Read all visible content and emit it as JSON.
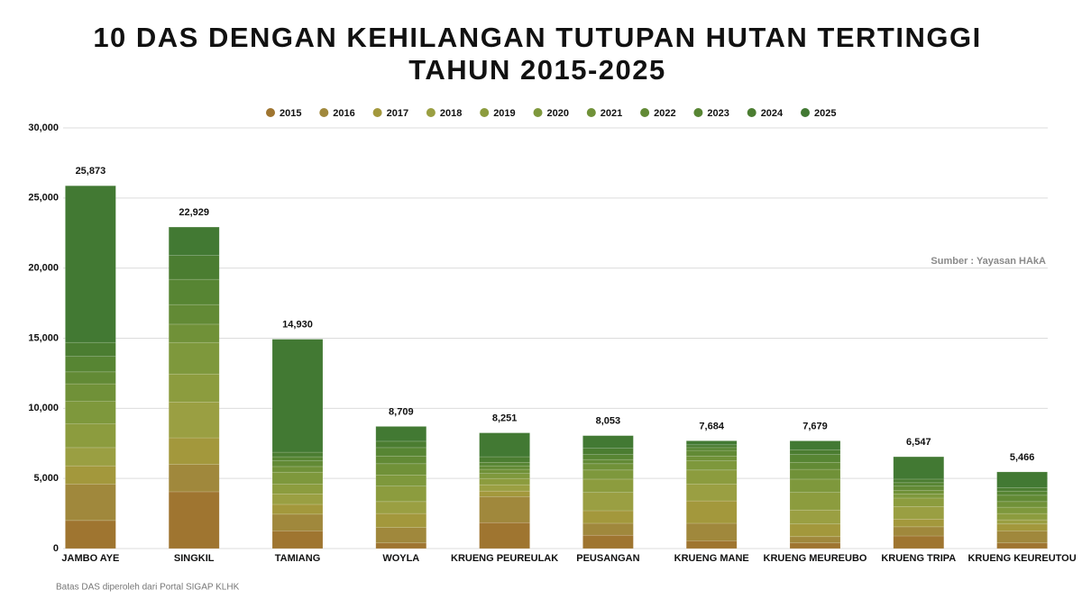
{
  "chart_data": {
    "type": "stacked_bar",
    "title": [
      "10 DAS DENGAN KEHILANGAN TUTUPAN HUTAN TERTINGGI",
      "TAHUN 2015-2025"
    ],
    "source": "Sumber : Yayasan HAkA",
    "footnote": "Batas DAS  diperoleh dari Portal SIGAP KLHK",
    "categories": [
      "JAMBO AYE",
      "SINGKIL",
      "TAMIANG",
      "WOYLA",
      "KRUENG PEUREULAK",
      "PEUSANGAN",
      "KRUENG MANE",
      "KRUENG MEUREUBO",
      "KRUENG TRIPA",
      "KRUENG KEUREUTOU"
    ],
    "total_labels": [
      "25,873",
      "22,929",
      "14,930",
      "8,709",
      "8,251",
      "8,053",
      "7,684",
      "7,679",
      "6,547",
      "5,466"
    ],
    "series": [
      {
        "name": "2015",
        "color": "#9f7530",
        "values": [
          2000,
          4050,
          1250,
          400,
          1850,
          950,
          550,
          400,
          900,
          400
        ]
      },
      {
        "name": "2016",
        "color": "#a0883c",
        "values": [
          2600,
          1950,
          1200,
          1100,
          1850,
          850,
          1250,
          450,
          650,
          850
        ]
      },
      {
        "name": "2017",
        "color": "#a3983c",
        "values": [
          1300,
          1900,
          700,
          1000,
          400,
          900,
          1600,
          900,
          550,
          500
        ]
      },
      {
        "name": "2018",
        "color": "#9a9f42",
        "values": [
          1300,
          2550,
          750,
          850,
          450,
          1300,
          1200,
          1000,
          900,
          300
        ]
      },
      {
        "name": "2019",
        "color": "#8c9c3e",
        "values": [
          1700,
          2000,
          700,
          1100,
          450,
          950,
          1000,
          1250,
          600,
          450
        ]
      },
      {
        "name": "2020",
        "color": "#7e983c",
        "values": [
          1600,
          2250,
          850,
          800,
          350,
          650,
          650,
          950,
          300,
          450
        ]
      },
      {
        "name": "2021",
        "color": "#709138",
        "values": [
          1250,
          1300,
          400,
          800,
          300,
          450,
          350,
          700,
          250,
          400
        ]
      },
      {
        "name": "2022",
        "color": "#628a35",
        "values": [
          850,
          1400,
          400,
          550,
          250,
          300,
          400,
          500,
          300,
          450
        ]
      },
      {
        "name": "2023",
        "color": "#578533",
        "values": [
          1100,
          1800,
          300,
          600,
          250,
          350,
          200,
          550,
          250,
          300
        ]
      },
      {
        "name": "2024",
        "color": "#4b7d31",
        "values": [
          1000,
          1700,
          320,
          450,
          400,
          450,
          200,
          350,
          250,
          250
        ]
      },
      {
        "name": "2025",
        "color": "#427933",
        "values": [
          11173,
          2029,
          8060,
          1059,
          1701,
          903,
          284,
          629,
          1597,
          1116
        ]
      }
    ],
    "ylim": [
      0,
      30000
    ],
    "yticks": [
      0,
      {
        "value": 5000,
        "label": "5,000"
      },
      {
        "value": 10000,
        "label": "10,000"
      },
      {
        "value": 15000,
        "label": "15,000"
      },
      {
        "value": 20000,
        "label": "20,000"
      },
      {
        "value": 25000,
        "label": "25,000"
      },
      {
        "value": 30000,
        "label": "30,000"
      }
    ],
    "grid": true
  }
}
